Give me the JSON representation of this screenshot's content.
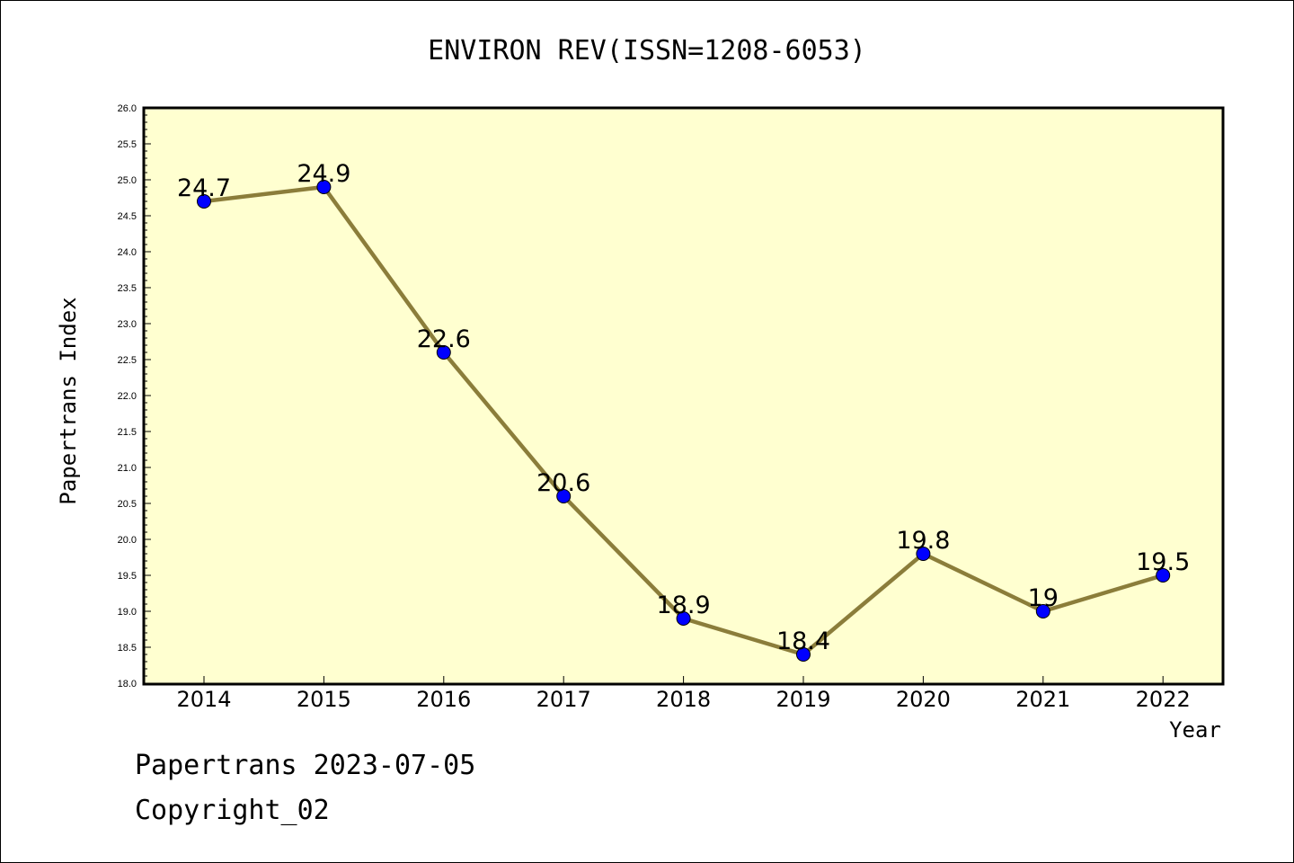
{
  "chart_data": {
    "type": "line",
    "title": "ENVIRON REV(ISSN=1208-6053)",
    "xlabel": "Year",
    "ylabel": "Papertrans Index",
    "categories": [
      "2014",
      "2015",
      "2016",
      "2017",
      "2018",
      "2019",
      "2020",
      "2021",
      "2022"
    ],
    "series": [
      {
        "values": [
          24.7,
          24.9,
          22.6,
          20.6,
          18.9,
          18.4,
          19.8,
          19.0,
          19.5
        ]
      }
    ],
    "data_labels": [
      "24.7",
      "24.9",
      "22.6",
      "20.6",
      "18.9",
      "18.4",
      "19.8",
      "19",
      "19.5"
    ],
    "ylim": [
      18.0,
      26.0
    ],
    "yticks": [
      "18.0",
      "18.5",
      "19.0",
      "19.5",
      "20.0",
      "20.5",
      "21.0",
      "21.5",
      "22.0",
      "22.5",
      "23.0",
      "23.5",
      "24.0",
      "24.5",
      "25.0",
      "25.5",
      "26.0"
    ],
    "grid": false,
    "legend": "none",
    "colors": {
      "plot_background": "#FFFFD0",
      "line": "#8B7D3A",
      "marker": "#0000FF"
    }
  },
  "footer": {
    "line1": "Papertrans 2023-07-05",
    "line2": "Copyright_02"
  }
}
